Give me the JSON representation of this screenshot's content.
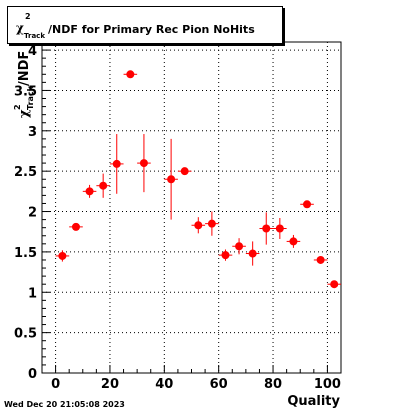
{
  "title": {
    "prefix_symbol": "χ",
    "prefix_superscript": "2",
    "prefix_subscript": "Track",
    "text": "/NDF for Primary Rec Pion NoHits"
  },
  "footer": "Wed Dec 20 21:05:08 2023",
  "chart_data": {
    "type": "scatter",
    "title": "χ²_Track/NDF for Primary Rec Pion NoHits",
    "xlabel": "Quality",
    "ylabel": "χ²_Track/NDF",
    "ylabel_symbol": "χ",
    "ylabel_superscript": "2",
    "ylabel_subscript": "Track",
    "ylabel_suffix": "/NDF",
    "xlim": [
      -5,
      105
    ],
    "ylim": [
      0,
      4.1
    ],
    "xticks": [
      0,
      20,
      40,
      60,
      80,
      100
    ],
    "yticks": [
      0,
      0.5,
      1,
      1.5,
      2,
      2.5,
      3,
      3.5,
      4
    ],
    "ytick_labels": [
      "0",
      "0.5",
      "1",
      "1.5",
      "2",
      "2.5",
      "3",
      "3.5",
      "4"
    ],
    "grid": true,
    "marker_color": "#ff0000",
    "errorbar_color": "#ff0000",
    "x_halfwidth": 2.5,
    "points": [
      {
        "x": 2.5,
        "y": 1.45,
        "err": 0.07
      },
      {
        "x": 7.5,
        "y": 1.81,
        "err": 0.03
      },
      {
        "x": 12.5,
        "y": 2.25,
        "err": 0.08
      },
      {
        "x": 17.5,
        "y": 2.32,
        "err": 0.15
      },
      {
        "x": 22.5,
        "y": 2.59,
        "err": 0.37
      },
      {
        "x": 27.5,
        "y": 3.7,
        "err": 0.0
      },
      {
        "x": 32.5,
        "y": 2.6,
        "err": 0.36
      },
      {
        "x": 42.5,
        "y": 2.4,
        "err": 0.5
      },
      {
        "x": 47.5,
        "y": 2.5,
        "err": 0.02
      },
      {
        "x": 52.5,
        "y": 1.83,
        "err": 0.1
      },
      {
        "x": 57.5,
        "y": 1.85,
        "err": 0.15
      },
      {
        "x": 62.5,
        "y": 1.46,
        "err": 0.07
      },
      {
        "x": 67.5,
        "y": 1.57,
        "err": 0.1
      },
      {
        "x": 72.5,
        "y": 1.48,
        "err": 0.15
      },
      {
        "x": 77.5,
        "y": 1.79,
        "err": 0.2
      },
      {
        "x": 82.5,
        "y": 1.79,
        "err": 0.13
      },
      {
        "x": 87.5,
        "y": 1.63,
        "err": 0.08
      },
      {
        "x": 92.5,
        "y": 2.09,
        "err": 0.0
      },
      {
        "x": 97.5,
        "y": 1.4,
        "err": 0.0
      },
      {
        "x": 102.5,
        "y": 1.1,
        "err": 0.0
      }
    ]
  }
}
